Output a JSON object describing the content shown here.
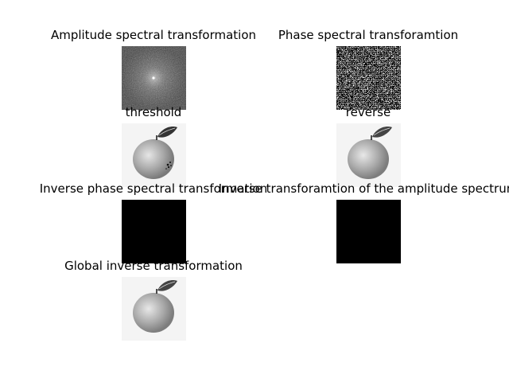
{
  "figure": {
    "panels": [
      {
        "id": "amplitude",
        "title": "Amplitude spectral transformation",
        "image": "log-magnitude-spectrum"
      },
      {
        "id": "phase",
        "title": "Phase spectral transforamtion",
        "image": "phase-spectrum-noise"
      },
      {
        "id": "threshold",
        "title": "threshold",
        "image": "apple-thresholded-grayscale"
      },
      {
        "id": "reverse",
        "title": "reverse",
        "image": "apple-grayscale"
      },
      {
        "id": "inverse_phase",
        "title": "Inverse phase spectral transformation",
        "image": "black-square"
      },
      {
        "id": "inverse_amplitude",
        "title": "Inverse transforamtion of the amplitude spectrum",
        "image": "black-square"
      },
      {
        "id": "global_inverse",
        "title": "Global inverse transformation",
        "image": "apple-grayscale"
      }
    ]
  }
}
